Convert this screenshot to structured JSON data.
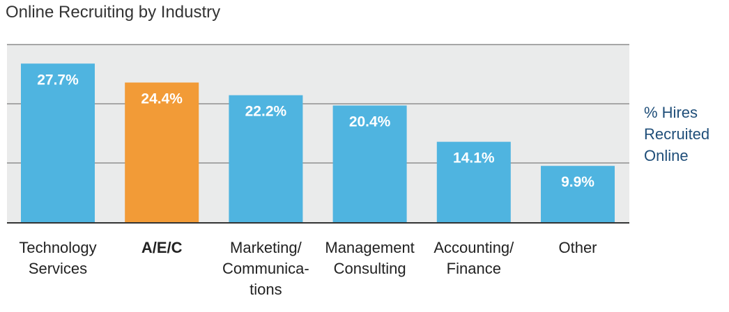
{
  "chart_data": {
    "type": "bar",
    "title": "Online Recruiting by Industry",
    "series_label": [
      "% Hires",
      "Recruited",
      "Online"
    ],
    "categories": [
      [
        "Technology",
        "Services"
      ],
      [
        "A/E/C"
      ],
      [
        "Marketing/",
        "Communica-",
        "tions"
      ],
      [
        "Management",
        "Consulting"
      ],
      [
        "Accounting/",
        "Finance"
      ],
      [
        "Other"
      ]
    ],
    "values": [
      27.7,
      24.4,
      22.2,
      20.4,
      14.1,
      9.9
    ],
    "value_labels": [
      "27.7%",
      "24.4%",
      "22.2%",
      "20.4%",
      "14.1%",
      "9.9%"
    ],
    "highlight_index": 1,
    "ylim": [
      0,
      31
    ],
    "gridlines": true,
    "colors": {
      "bar": "#4fb4e0",
      "highlight": "#f29b37",
      "plot_bg": "#eaebeb",
      "grid": "#a6a6a6",
      "baseline": "#333333",
      "label_text": "#ffffff",
      "category_text": "#222222",
      "legend_text": "#1f4e79"
    }
  }
}
